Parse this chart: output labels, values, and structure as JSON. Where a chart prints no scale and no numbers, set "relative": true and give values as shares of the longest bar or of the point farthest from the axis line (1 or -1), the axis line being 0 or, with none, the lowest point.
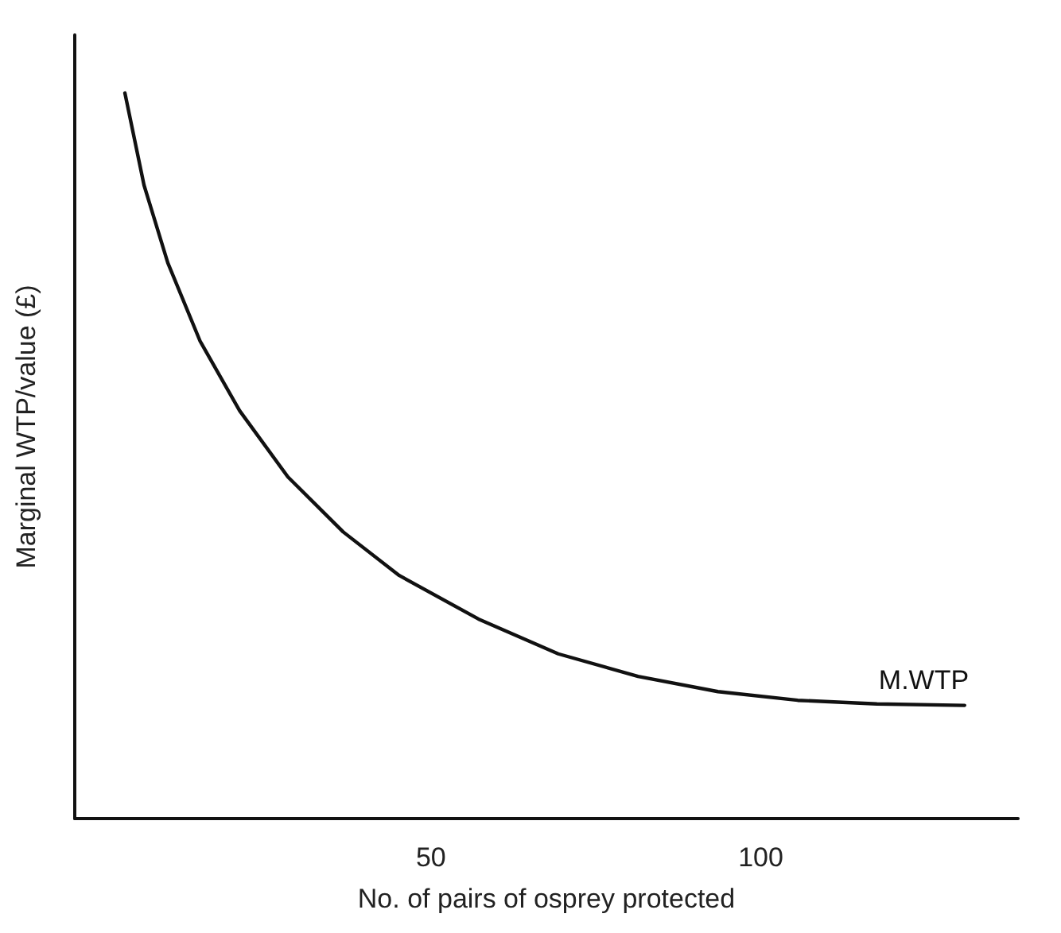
{
  "chart_data": {
    "type": "line",
    "xlabel": "No. of pairs of osprey protected",
    "ylabel": "Marginal WTP/value (£)",
    "relative": true,
    "xlim": [
      -4,
      139
    ],
    "xticks": [
      50,
      100
    ],
    "grid": false,
    "legend": false,
    "marker": "none",
    "line_style": "solid",
    "series": [
      {
        "name": "M.WTP",
        "color": "#111111",
        "x": [
          3.6,
          6.5,
          10.1,
          15,
          21,
          28.3,
          36.7,
          45.2,
          57.2,
          69.3,
          81.4,
          93.5,
          105.6,
          117.6,
          130.9
        ],
        "values": [
          1,
          0.873,
          0.766,
          0.658,
          0.562,
          0.471,
          0.395,
          0.335,
          0.275,
          0.227,
          0.196,
          0.175,
          0.163,
          0.158,
          0.156
        ]
      }
    ]
  }
}
